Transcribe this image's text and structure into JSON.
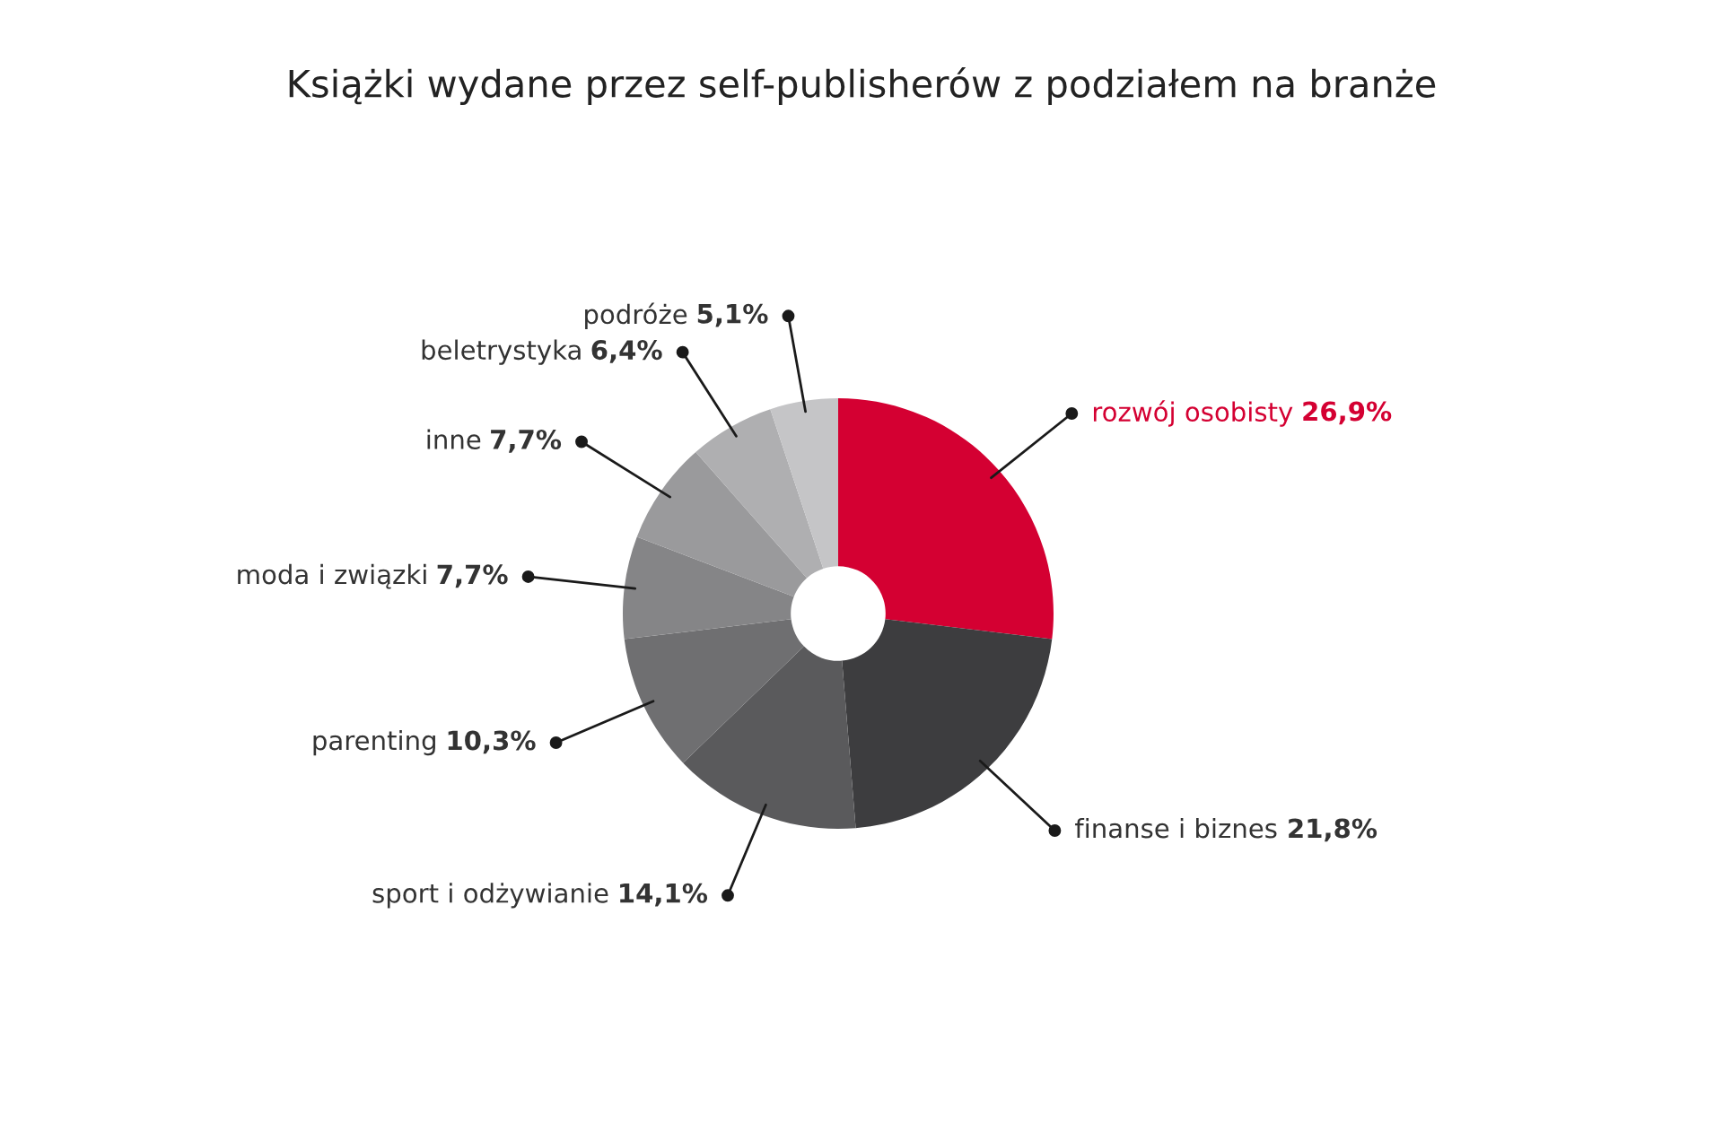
{
  "chart_data": {
    "type": "donut",
    "title": "Książki wydane przez self-publisherów z podziałem na branże",
    "categories": [
      "rozwój osobisty",
      "finanse i biznes",
      "sport i odżywianie",
      "parenting",
      "moda i związki",
      "inne",
      "beletrystyka",
      "podróże"
    ],
    "values": [
      26.9,
      21.8,
      14.1,
      10.3,
      7.7,
      7.7,
      6.4,
      5.1
    ],
    "colors": [
      "#d40032",
      "#3d3d3f",
      "#5a5a5c",
      "#6f6f71",
      "#858587",
      "#9a9a9c",
      "#afafb1",
      "#c5c5c7"
    ],
    "value_labels": [
      "26,9%",
      "21,8%",
      "14,1%",
      "10,3%",
      "7,7%",
      "7,7%",
      "6,4%",
      "5,1%"
    ],
    "legend": false
  }
}
